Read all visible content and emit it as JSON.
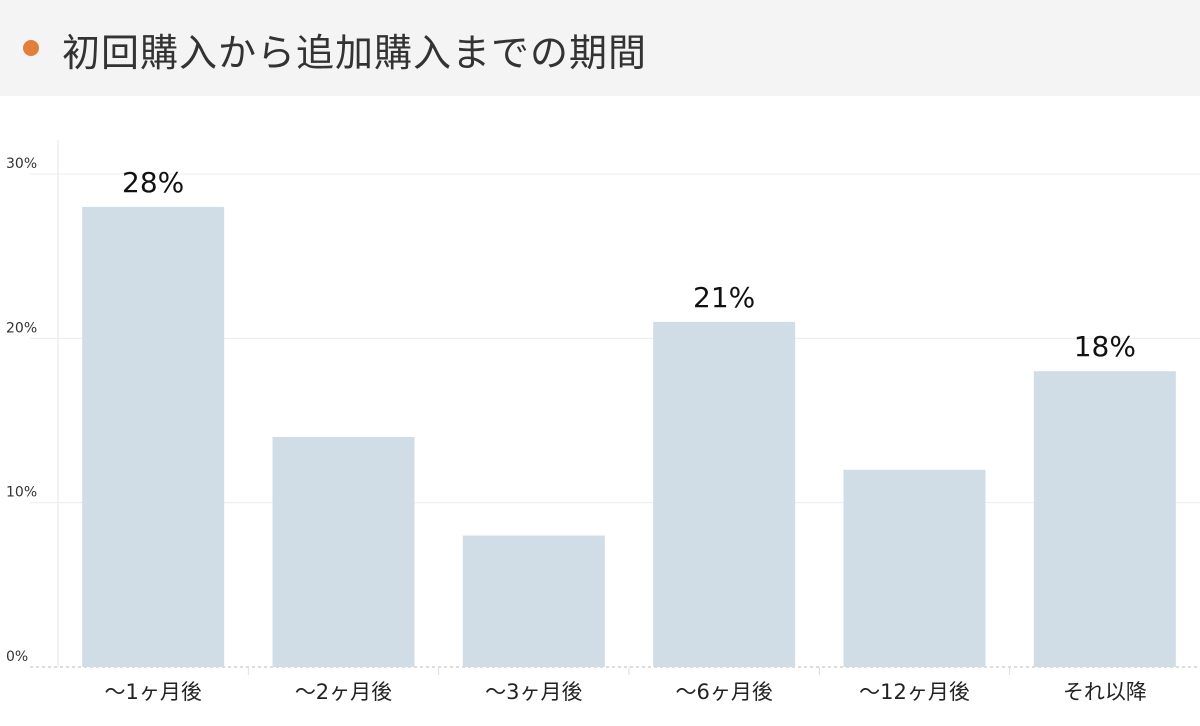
{
  "header": {
    "title": "初回購入から追加購入までの期間",
    "dot_color": "#e07f3a"
  },
  "chart_data": {
    "type": "bar",
    "categories": [
      "〜1ヶ月後",
      "〜2ヶ月後",
      "〜3ヶ月後",
      "〜6ヶ月後",
      "〜12ヶ月後",
      "それ以降"
    ],
    "values": [
      28,
      14,
      8,
      21,
      12,
      18
    ],
    "data_labels": [
      "28%",
      "",
      "",
      "21%",
      "",
      "18%"
    ],
    "y_ticks": [
      "0%",
      "10%",
      "20%",
      "30%"
    ],
    "y_tick_values": [
      0,
      10,
      20,
      30
    ],
    "ylim": [
      0,
      30
    ],
    "grid": true,
    "bar_color": "#d0dde6",
    "title": "",
    "xlabel": "",
    "ylabel": ""
  }
}
